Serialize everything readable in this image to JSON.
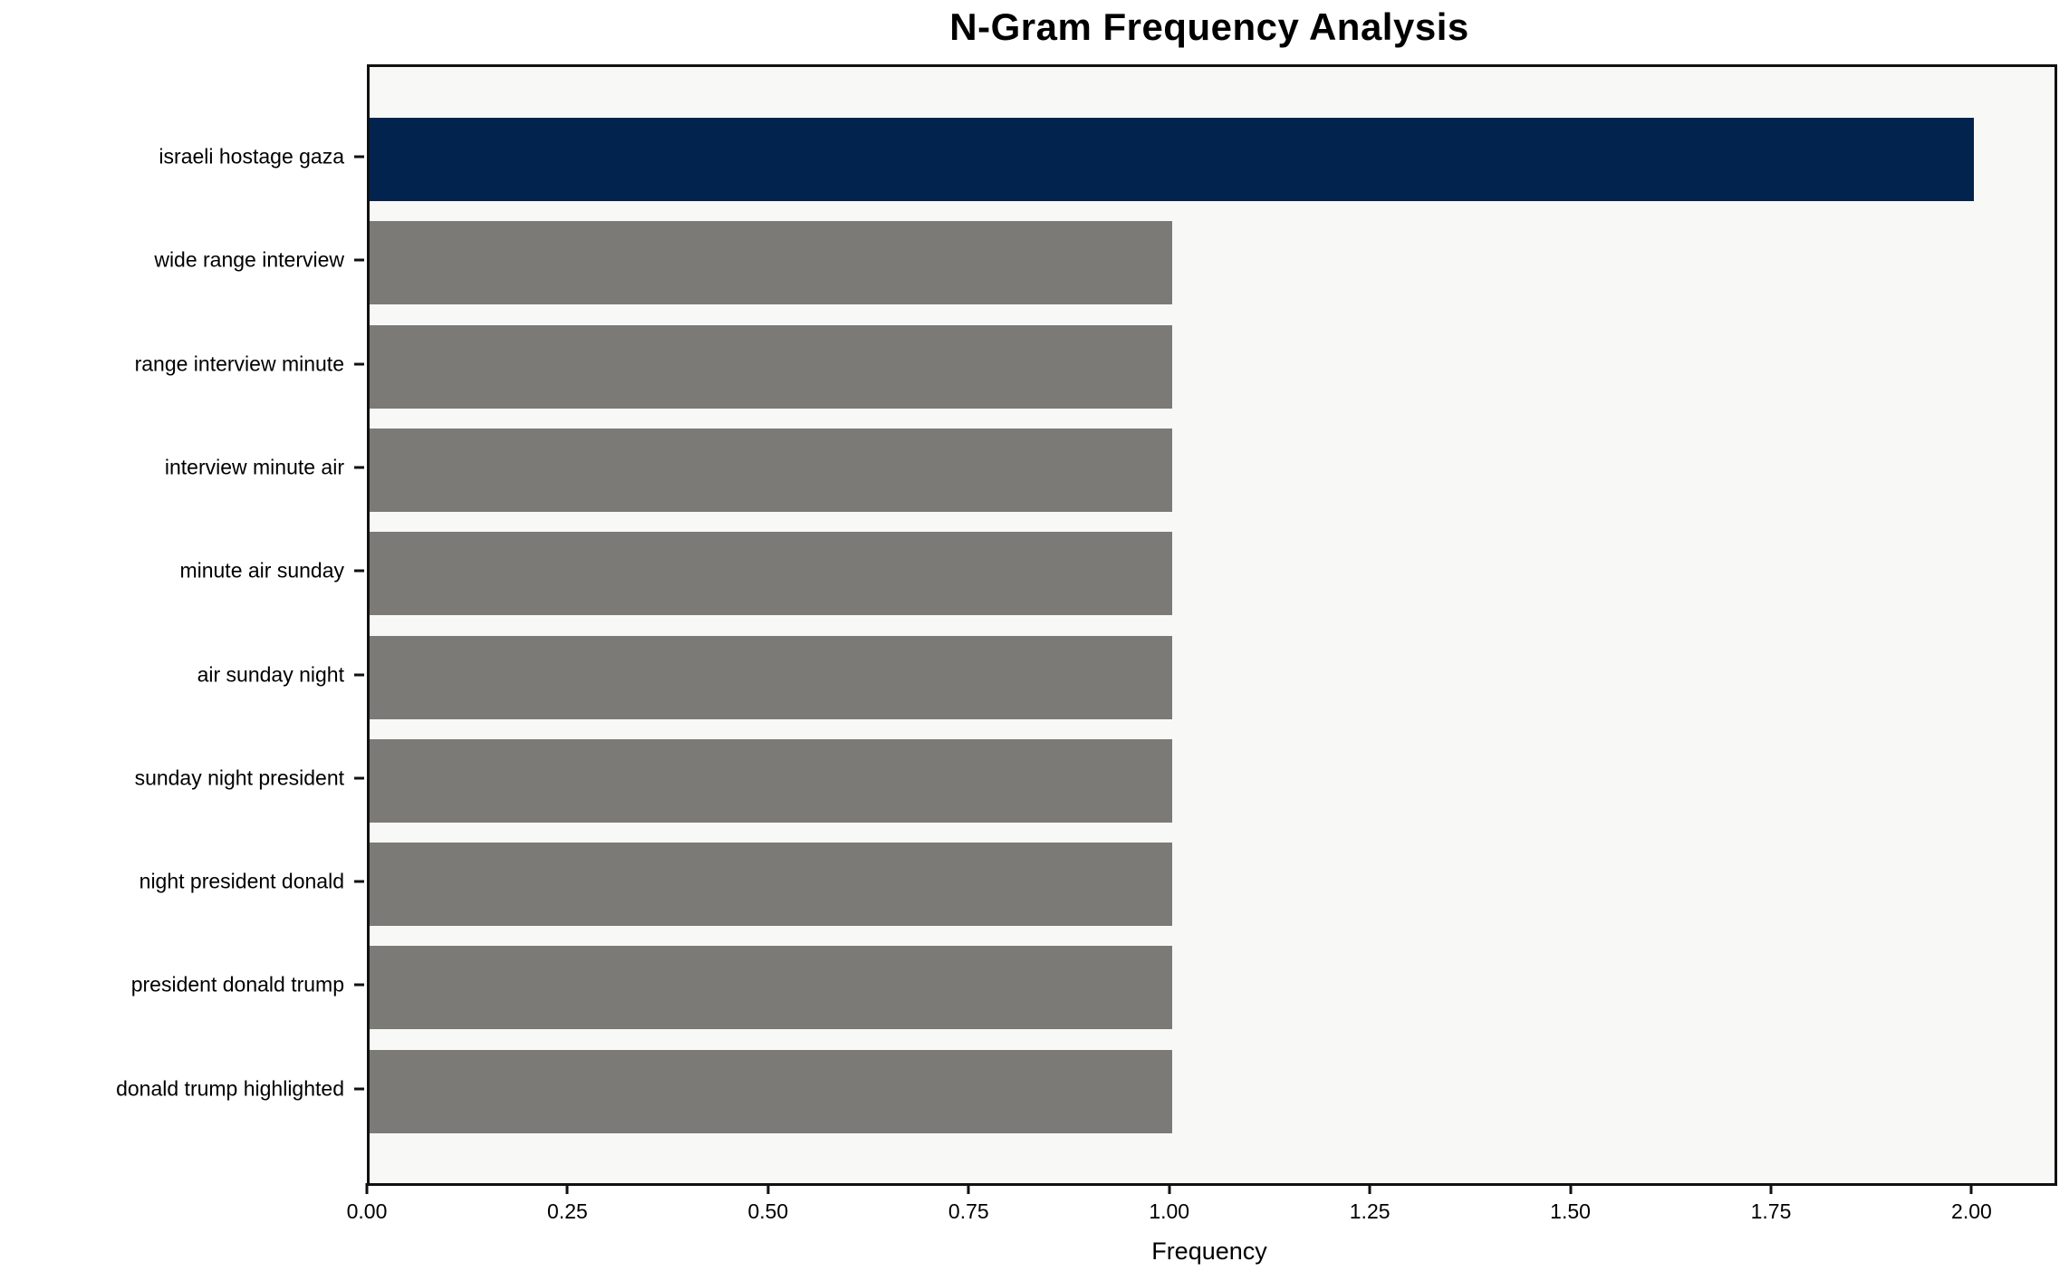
{
  "chart_data": {
    "type": "bar",
    "orientation": "horizontal",
    "title": "N-Gram Frequency Analysis",
    "xlabel": "Frequency",
    "ylabel": "",
    "categories": [
      "israeli hostage gaza",
      "wide range interview",
      "range interview minute",
      "interview minute air",
      "minute air sunday",
      "air sunday night",
      "sunday night president",
      "night president donald",
      "president donald trump",
      "donald trump highlighted"
    ],
    "values": [
      2,
      1,
      1,
      1,
      1,
      1,
      1,
      1,
      1,
      1
    ],
    "bar_colors": [
      "#02234d",
      "#7b7a76",
      "#7b7a76",
      "#7b7a76",
      "#7b7a76",
      "#7b7a76",
      "#7b7a76",
      "#7b7a76",
      "#7b7a76",
      "#7b7a76"
    ],
    "highlight_color": "#02234d",
    "default_color": "#7b7a76",
    "xlim": [
      0,
      2.1
    ],
    "xticks": [
      0,
      0.25,
      0.5,
      0.75,
      1.0,
      1.25,
      1.5,
      1.75,
      2.0
    ],
    "xtick_labels": [
      "0.00",
      "0.25",
      "0.50",
      "0.75",
      "1.00",
      "1.25",
      "1.50",
      "1.75",
      "2.00"
    ],
    "plot_background": "#f8f8f7",
    "figure_background": "#ffffff",
    "spine_color": "#111111",
    "grid": false,
    "legend": null
  }
}
